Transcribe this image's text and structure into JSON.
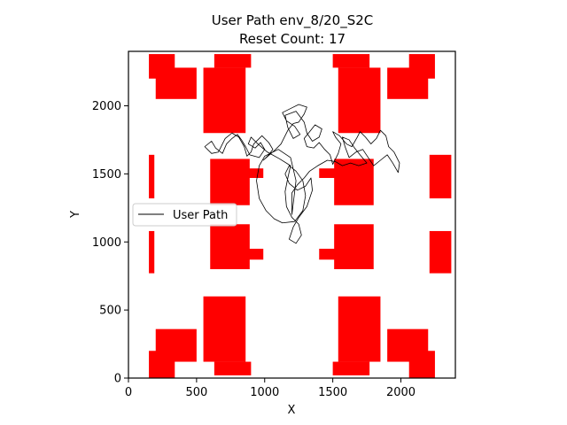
{
  "chart_data": {
    "type": "line",
    "title": "User Path env_8/20_S2C",
    "subtitle": "Reset Count: 17",
    "xlabel": "X",
    "ylabel": "Y",
    "xlim": [
      0,
      2400
    ],
    "ylim": [
      0,
      2400
    ],
    "xticks": [
      0,
      500,
      1000,
      1500,
      2000
    ],
    "yticks": [
      0,
      500,
      1000,
      1500,
      2000
    ],
    "legend": {
      "position": "center-left",
      "entries": [
        "User Path"
      ]
    },
    "colors": {
      "obstacle": "#ff0000",
      "path": "#000000"
    },
    "obstacles": [
      {
        "x0": 150,
        "y0": 1320,
        "x1": 190,
        "y1": 1640
      },
      {
        "x0": 150,
        "y0": 770,
        "x1": 190,
        "y1": 1080
      },
      {
        "x0": 2210,
        "y0": 1320,
        "x1": 2370,
        "y1": 1640
      },
      {
        "x0": 2210,
        "y0": 770,
        "x1": 2370,
        "y1": 1080
      },
      {
        "x0": 150,
        "y0": 2200,
        "x1": 340,
        "y1": 2380
      },
      {
        "x0": 200,
        "y0": 2050,
        "x1": 500,
        "y1": 2280
      },
      {
        "x0": 550,
        "y0": 1800,
        "x1": 860,
        "y1": 2280
      },
      {
        "x0": 630,
        "y0": 2280,
        "x1": 900,
        "y1": 2380
      },
      {
        "x0": 1500,
        "y0": 2280,
        "x1": 1770,
        "y1": 2380
      },
      {
        "x0": 1540,
        "y0": 1800,
        "x1": 1850,
        "y1": 2280
      },
      {
        "x0": 1900,
        "y0": 2050,
        "x1": 2200,
        "y1": 2280
      },
      {
        "x0": 2060,
        "y0": 2200,
        "x1": 2250,
        "y1": 2380
      },
      {
        "x0": 600,
        "y0": 1270,
        "x1": 890,
        "y1": 1610
      },
      {
        "x0": 860,
        "y0": 1470,
        "x1": 990,
        "y1": 1540
      },
      {
        "x0": 1400,
        "y0": 1470,
        "x1": 1540,
        "y1": 1540
      },
      {
        "x0": 1510,
        "y0": 1270,
        "x1": 1800,
        "y1": 1610
      },
      {
        "x0": 600,
        "y0": 800,
        "x1": 890,
        "y1": 1130
      },
      {
        "x0": 860,
        "y0": 870,
        "x1": 990,
        "y1": 950
      },
      {
        "x0": 1400,
        "y0": 870,
        "x1": 1540,
        "y1": 950
      },
      {
        "x0": 1510,
        "y0": 800,
        "x1": 1800,
        "y1": 1130
      },
      {
        "x0": 150,
        "y0": 0,
        "x1": 340,
        "y1": 200
      },
      {
        "x0": 200,
        "y0": 120,
        "x1": 500,
        "y1": 360
      },
      {
        "x0": 550,
        "y0": 120,
        "x1": 860,
        "y1": 600
      },
      {
        "x0": 630,
        "y0": 20,
        "x1": 900,
        "y1": 120
      },
      {
        "x0": 1500,
        "y0": 20,
        "x1": 1770,
        "y1": 120
      },
      {
        "x0": 1540,
        "y0": 120,
        "x1": 1850,
        "y1": 600
      },
      {
        "x0": 1900,
        "y0": 120,
        "x1": 2200,
        "y1": 360
      },
      {
        "x0": 2060,
        "y0": 0,
        "x1": 2250,
        "y1": 200
      }
    ],
    "path": [
      [
        1200,
        1200
      ],
      [
        1230,
        1450
      ],
      [
        1190,
        1620
      ],
      [
        1100,
        1680
      ],
      [
        1000,
        1630
      ],
      [
        960,
        1560
      ],
      [
        940,
        1450
      ],
      [
        960,
        1320
      ],
      [
        1010,
        1230
      ],
      [
        1070,
        1170
      ],
      [
        1130,
        1140
      ],
      [
        1220,
        1150
      ],
      [
        1280,
        1230
      ],
      [
        1300,
        1340
      ],
      [
        1280,
        1450
      ],
      [
        1230,
        1520
      ],
      [
        1180,
        1560
      ],
      [
        1150,
        1500
      ],
      [
        1180,
        1430
      ],
      [
        1240,
        1380
      ],
      [
        1300,
        1410
      ],
      [
        1340,
        1470
      ],
      [
        1350,
        1380
      ],
      [
        1310,
        1260
      ],
      [
        1250,
        1180
      ],
      [
        1210,
        1110
      ],
      [
        1180,
        1020
      ],
      [
        1230,
        990
      ],
      [
        1270,
        1050
      ],
      [
        1250,
        1130
      ],
      [
        1200,
        1180
      ],
      [
        1160,
        1260
      ],
      [
        1150,
        1370
      ],
      [
        1170,
        1470
      ],
      [
        1190,
        1560
      ],
      [
        1110,
        1610
      ],
      [
        1020,
        1660
      ],
      [
        950,
        1720
      ],
      [
        900,
        1770
      ],
      [
        880,
        1720
      ],
      [
        930,
        1690
      ],
      [
        970,
        1730
      ],
      [
        1000,
        1680
      ],
      [
        960,
        1620
      ],
      [
        890,
        1640
      ],
      [
        860,
        1700
      ],
      [
        830,
        1750
      ],
      [
        800,
        1790
      ],
      [
        760,
        1760
      ],
      [
        720,
        1720
      ],
      [
        690,
        1650
      ],
      [
        640,
        1690
      ],
      [
        610,
        1740
      ],
      [
        560,
        1700
      ],
      [
        610,
        1650
      ],
      [
        660,
        1660
      ],
      [
        710,
        1760
      ],
      [
        760,
        1800
      ],
      [
        810,
        1770
      ],
      [
        850,
        1700
      ],
      [
        870,
        1630
      ],
      [
        900,
        1660
      ],
      [
        920,
        1720
      ],
      [
        980,
        1780
      ],
      [
        1030,
        1730
      ],
      [
        1060,
        1680
      ],
      [
        1030,
        1640
      ],
      [
        990,
        1600
      ],
      [
        1070,
        1670
      ],
      [
        1120,
        1720
      ],
      [
        1170,
        1820
      ],
      [
        1210,
        1870
      ],
      [
        1250,
        1880
      ],
      [
        1290,
        1940
      ],
      [
        1310,
        1990
      ],
      [
        1250,
        2010
      ],
      [
        1190,
        1980
      ],
      [
        1130,
        1950
      ],
      [
        1160,
        1890
      ],
      [
        1220,
        1850
      ],
      [
        1260,
        1790
      ],
      [
        1210,
        1760
      ],
      [
        1170,
        1840
      ],
      [
        1150,
        1930
      ],
      [
        1230,
        1960
      ],
      [
        1290,
        1880
      ],
      [
        1310,
        1800
      ],
      [
        1350,
        1740
      ],
      [
        1400,
        1770
      ],
      [
        1420,
        1830
      ],
      [
        1370,
        1860
      ],
      [
        1330,
        1810
      ],
      [
        1290,
        1760
      ],
      [
        1310,
        1700
      ],
      [
        1360,
        1690
      ],
      [
        1400,
        1730
      ],
      [
        1440,
        1680
      ],
      [
        1480,
        1640
      ],
      [
        1500,
        1570
      ],
      [
        1540,
        1650
      ],
      [
        1560,
        1720
      ],
      [
        1520,
        1770
      ],
      [
        1500,
        1810
      ],
      [
        1550,
        1780
      ],
      [
        1600,
        1720
      ],
      [
        1640,
        1700
      ],
      [
        1680,
        1770
      ],
      [
        1700,
        1810
      ],
      [
        1740,
        1770
      ],
      [
        1780,
        1720
      ],
      [
        1820,
        1760
      ],
      [
        1850,
        1820
      ],
      [
        1890,
        1780
      ],
      [
        1910,
        1700
      ],
      [
        1950,
        1660
      ],
      [
        1990,
        1580
      ],
      [
        1980,
        1510
      ],
      [
        1940,
        1580
      ],
      [
        1900,
        1640
      ],
      [
        1850,
        1600
      ],
      [
        1800,
        1560
      ],
      [
        1760,
        1620
      ],
      [
        1720,
        1680
      ],
      [
        1670,
        1660
      ],
      [
        1620,
        1620
      ],
      [
        1590,
        1700
      ],
      [
        1570,
        1770
      ],
      [
        1620,
        1750
      ],
      [
        1660,
        1690
      ],
      [
        1700,
        1640
      ],
      [
        1750,
        1580
      ],
      [
        1690,
        1560
      ],
      [
        1630,
        1580
      ],
      [
        1570,
        1560
      ],
      [
        1520,
        1590
      ],
      [
        1460,
        1600
      ],
      [
        1390,
        1560
      ],
      [
        1330,
        1520
      ],
      [
        1290,
        1470
      ],
      [
        1240,
        1420
      ],
      [
        1200,
        1360
      ],
      [
        1200,
        1200
      ]
    ]
  }
}
